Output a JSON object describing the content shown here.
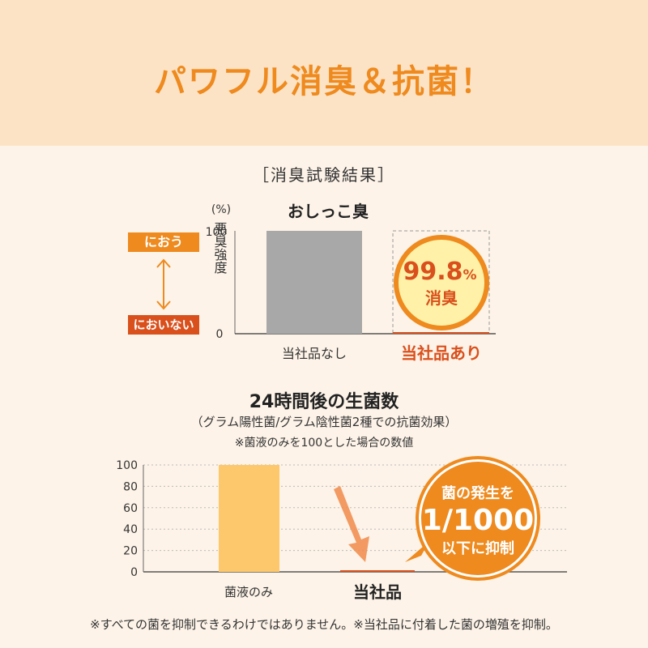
{
  "banner": {
    "title": "パワフル消臭＆抗菌！"
  },
  "deodor": {
    "section_title": "［消臭試験結果］",
    "unit_label": "(%)",
    "y_axis_label": "悪臭強度",
    "tag_smell": "におう",
    "tag_no_smell": "においない",
    "badge_line1": "99.8",
    "badge_pct": "%",
    "badge_line2": "消臭"
  },
  "antibac": {
    "title": "24時間後の生菌数",
    "subtitle": "（グラム陽性菌/グラム陰性菌2種での抗菌効果）",
    "note": "※菌液のみを100とした場合の数値",
    "badge_line1": "菌の発生を",
    "badge_line2": "1/1000",
    "badge_line3": "以下に抑制"
  },
  "footer": {
    "note": "※すべての菌を抑制できるわけではありません。※当社品に付着した菌の増殖を抑制。"
  },
  "colors": {
    "accent": "#ee8a1e",
    "accent_dark": "#d9501d",
    "gray_bar": "#a8a8a8",
    "yellow_bar": "#fcc86b",
    "banner_bg": "#fde3c6",
    "page_bg": "#fdf3e8"
  },
  "chart_data": [
    {
      "type": "bar",
      "title": "おしっこ臭",
      "ylabel": "悪臭強度",
      "ylim": [
        0,
        100
      ],
      "y_ticks": [
        "100",
        "0"
      ],
      "categories": [
        "当社品なし",
        "当社品あり"
      ],
      "values": [
        100,
        0.2
      ],
      "grid": false
    },
    {
      "type": "bar",
      "ylim": [
        0,
        100
      ],
      "y_ticks": [
        "0",
        "20",
        "40",
        "60",
        "80",
        "100"
      ],
      "categories": [
        "菌液のみ",
        "当社品"
      ],
      "values": [
        100,
        0.1
      ],
      "grid": true
    }
  ]
}
